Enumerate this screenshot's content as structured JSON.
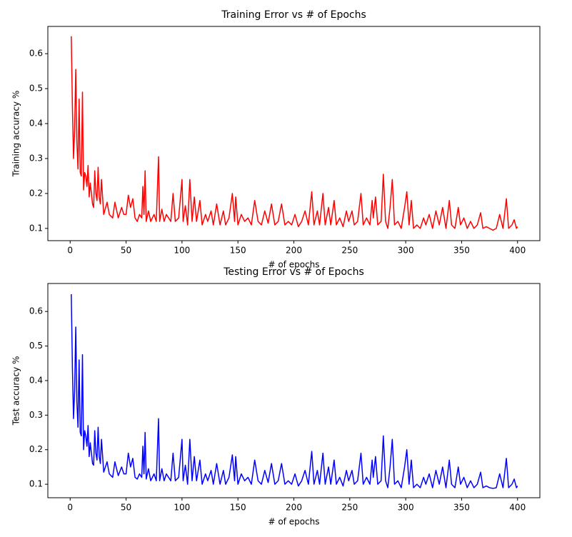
{
  "chart_data": [
    {
      "type": "line",
      "title": "Training Error vs # of Epochs",
      "xlabel": "# of epochs",
      "ylabel": "Training accuracy %",
      "color": "#ff0000",
      "x": [
        1,
        2,
        3,
        4,
        5,
        6,
        7,
        8,
        9,
        10,
        11,
        12,
        13,
        14,
        15,
        16,
        17,
        18,
        19,
        20,
        21,
        22,
        23,
        24,
        25,
        26,
        27,
        28,
        30,
        33,
        35,
        38,
        40,
        43,
        46,
        48,
        50,
        52,
        54,
        56,
        58,
        60,
        62,
        64,
        65,
        66,
        67,
        68,
        70,
        72,
        75,
        77,
        79,
        80,
        82,
        84,
        86,
        88,
        90,
        92,
        94,
        97,
        100,
        101,
        103,
        105,
        107,
        109,
        111,
        113,
        116,
        118,
        121,
        123,
        126,
        128,
        131,
        134,
        137,
        139,
        142,
        145,
        147,
        148,
        150,
        153,
        156,
        159,
        162,
        165,
        168,
        171,
        174,
        177,
        180,
        183,
        186,
        189,
        192,
        195,
        198,
        201,
        204,
        207,
        210,
        213,
        216,
        218,
        221,
        223,
        226,
        228,
        231,
        233,
        236,
        238,
        241,
        244,
        247,
        249,
        252,
        254,
        257,
        260,
        262,
        265,
        268,
        270,
        271,
        273,
        275,
        278,
        280,
        282,
        284,
        286,
        288,
        290,
        293,
        296,
        299,
        301,
        303,
        305,
        307,
        310,
        313,
        316,
        318,
        321,
        324,
        327,
        330,
        333,
        336,
        339,
        341,
        344,
        347,
        349,
        352,
        355,
        358,
        361,
        364,
        367,
        369,
        372,
        375,
        378,
        381,
        384,
        387,
        390,
        392,
        395,
        397,
        399,
        400
      ],
      "values": [
        0.65,
        0.45,
        0.3,
        0.38,
        0.555,
        0.35,
        0.27,
        0.47,
        0.26,
        0.25,
        0.49,
        0.21,
        0.26,
        0.25,
        0.22,
        0.28,
        0.19,
        0.23,
        0.2,
        0.17,
        0.16,
        0.265,
        0.2,
        0.18,
        0.275,
        0.19,
        0.17,
        0.24,
        0.14,
        0.175,
        0.14,
        0.13,
        0.175,
        0.13,
        0.16,
        0.14,
        0.14,
        0.195,
        0.16,
        0.185,
        0.13,
        0.12,
        0.14,
        0.13,
        0.22,
        0.14,
        0.265,
        0.12,
        0.15,
        0.12,
        0.14,
        0.12,
        0.305,
        0.12,
        0.155,
        0.12,
        0.14,
        0.13,
        0.12,
        0.2,
        0.12,
        0.13,
        0.24,
        0.12,
        0.165,
        0.11,
        0.24,
        0.12,
        0.19,
        0.12,
        0.18,
        0.11,
        0.14,
        0.12,
        0.15,
        0.11,
        0.17,
        0.11,
        0.15,
        0.11,
        0.13,
        0.2,
        0.12,
        0.19,
        0.11,
        0.14,
        0.12,
        0.13,
        0.11,
        0.18,
        0.12,
        0.11,
        0.15,
        0.115,
        0.17,
        0.11,
        0.12,
        0.17,
        0.11,
        0.12,
        0.11,
        0.14,
        0.105,
        0.12,
        0.15,
        0.11,
        0.205,
        0.11,
        0.15,
        0.11,
        0.2,
        0.11,
        0.16,
        0.11,
        0.18,
        0.11,
        0.13,
        0.105,
        0.15,
        0.12,
        0.15,
        0.11,
        0.12,
        0.2,
        0.11,
        0.13,
        0.11,
        0.18,
        0.13,
        0.19,
        0.11,
        0.12,
        0.255,
        0.12,
        0.1,
        0.16,
        0.24,
        0.11,
        0.12,
        0.1,
        0.16,
        0.205,
        0.11,
        0.18,
        0.1,
        0.11,
        0.1,
        0.13,
        0.11,
        0.14,
        0.1,
        0.15,
        0.11,
        0.16,
        0.1,
        0.18,
        0.11,
        0.1,
        0.16,
        0.11,
        0.13,
        0.1,
        0.12,
        0.1,
        0.11,
        0.145,
        0.1,
        0.105,
        0.1,
        0.095,
        0.1,
        0.14,
        0.1,
        0.185,
        0.1,
        0.11,
        0.125,
        0.1,
        0.105
      ],
      "xlim": [
        -19.95,
        419.95
      ],
      "ylim": [
        0.065,
        0.678
      ],
      "xticks": [
        0,
        50,
        100,
        150,
        200,
        250,
        300,
        350,
        400
      ],
      "yticks": [
        0.1,
        0.2,
        0.3,
        0.4,
        0.5,
        0.6
      ]
    },
    {
      "type": "line",
      "title": "Testing Error vs # of Epochs",
      "xlabel": "# of epochs",
      "ylabel": "Test accuracy %",
      "color": "#0000ff",
      "x": [
        1,
        2,
        3,
        4,
        5,
        6,
        7,
        8,
        9,
        10,
        11,
        12,
        13,
        14,
        15,
        16,
        17,
        18,
        19,
        20,
        21,
        22,
        23,
        24,
        25,
        26,
        27,
        28,
        30,
        33,
        35,
        38,
        40,
        43,
        46,
        48,
        50,
        52,
        54,
        56,
        58,
        60,
        62,
        64,
        65,
        66,
        67,
        68,
        70,
        72,
        75,
        77,
        79,
        80,
        82,
        84,
        86,
        88,
        90,
        92,
        94,
        97,
        100,
        101,
        103,
        105,
        107,
        109,
        111,
        113,
        116,
        118,
        121,
        123,
        126,
        128,
        131,
        134,
        137,
        139,
        142,
        145,
        147,
        148,
        150,
        153,
        156,
        159,
        162,
        165,
        168,
        171,
        174,
        177,
        180,
        183,
        186,
        189,
        192,
        195,
        198,
        201,
        204,
        207,
        210,
        213,
        216,
        218,
        221,
        223,
        226,
        228,
        231,
        233,
        236,
        238,
        241,
        244,
        247,
        249,
        252,
        254,
        257,
        260,
        262,
        265,
        268,
        270,
        271,
        273,
        275,
        278,
        280,
        282,
        284,
        286,
        288,
        290,
        293,
        296,
        299,
        301,
        303,
        305,
        307,
        310,
        313,
        316,
        318,
        321,
        324,
        327,
        330,
        333,
        336,
        339,
        341,
        344,
        347,
        349,
        352,
        355,
        358,
        361,
        364,
        367,
        369,
        372,
        375,
        378,
        381,
        384,
        387,
        390,
        392,
        395,
        397,
        399,
        400
      ],
      "values": [
        0.65,
        0.44,
        0.29,
        0.37,
        0.555,
        0.34,
        0.265,
        0.46,
        0.25,
        0.24,
        0.475,
        0.2,
        0.255,
        0.24,
        0.21,
        0.27,
        0.18,
        0.22,
        0.19,
        0.16,
        0.155,
        0.255,
        0.19,
        0.17,
        0.265,
        0.18,
        0.16,
        0.23,
        0.135,
        0.165,
        0.13,
        0.12,
        0.165,
        0.125,
        0.15,
        0.13,
        0.13,
        0.19,
        0.15,
        0.175,
        0.12,
        0.115,
        0.13,
        0.12,
        0.21,
        0.13,
        0.25,
        0.115,
        0.145,
        0.11,
        0.13,
        0.11,
        0.29,
        0.11,
        0.145,
        0.11,
        0.13,
        0.12,
        0.11,
        0.19,
        0.11,
        0.12,
        0.23,
        0.11,
        0.155,
        0.1,
        0.23,
        0.11,
        0.18,
        0.11,
        0.17,
        0.1,
        0.13,
        0.11,
        0.14,
        0.1,
        0.16,
        0.1,
        0.14,
        0.1,
        0.12,
        0.185,
        0.11,
        0.18,
        0.1,
        0.13,
        0.11,
        0.12,
        0.1,
        0.17,
        0.11,
        0.1,
        0.14,
        0.105,
        0.16,
        0.1,
        0.11,
        0.16,
        0.1,
        0.11,
        0.1,
        0.13,
        0.095,
        0.11,
        0.14,
        0.1,
        0.195,
        0.1,
        0.14,
        0.1,
        0.19,
        0.1,
        0.15,
        0.1,
        0.17,
        0.1,
        0.12,
        0.095,
        0.14,
        0.11,
        0.14,
        0.1,
        0.11,
        0.19,
        0.1,
        0.12,
        0.1,
        0.17,
        0.12,
        0.18,
        0.1,
        0.11,
        0.24,
        0.11,
        0.09,
        0.15,
        0.23,
        0.1,
        0.11,
        0.09,
        0.15,
        0.2,
        0.1,
        0.17,
        0.09,
        0.1,
        0.09,
        0.12,
        0.1,
        0.13,
        0.09,
        0.14,
        0.1,
        0.15,
        0.09,
        0.17,
        0.1,
        0.09,
        0.15,
        0.1,
        0.12,
        0.09,
        0.11,
        0.09,
        0.1,
        0.135,
        0.09,
        0.095,
        0.09,
        0.088,
        0.09,
        0.13,
        0.09,
        0.175,
        0.09,
        0.1,
        0.115,
        0.09,
        0.095
      ],
      "xlim": [
        -19.95,
        419.95
      ],
      "ylim": [
        0.061,
        0.681
      ],
      "xticks": [
        0,
        50,
        100,
        150,
        200,
        250,
        300,
        350,
        400
      ],
      "yticks": [
        0.1,
        0.2,
        0.3,
        0.4,
        0.5,
        0.6
      ]
    }
  ]
}
